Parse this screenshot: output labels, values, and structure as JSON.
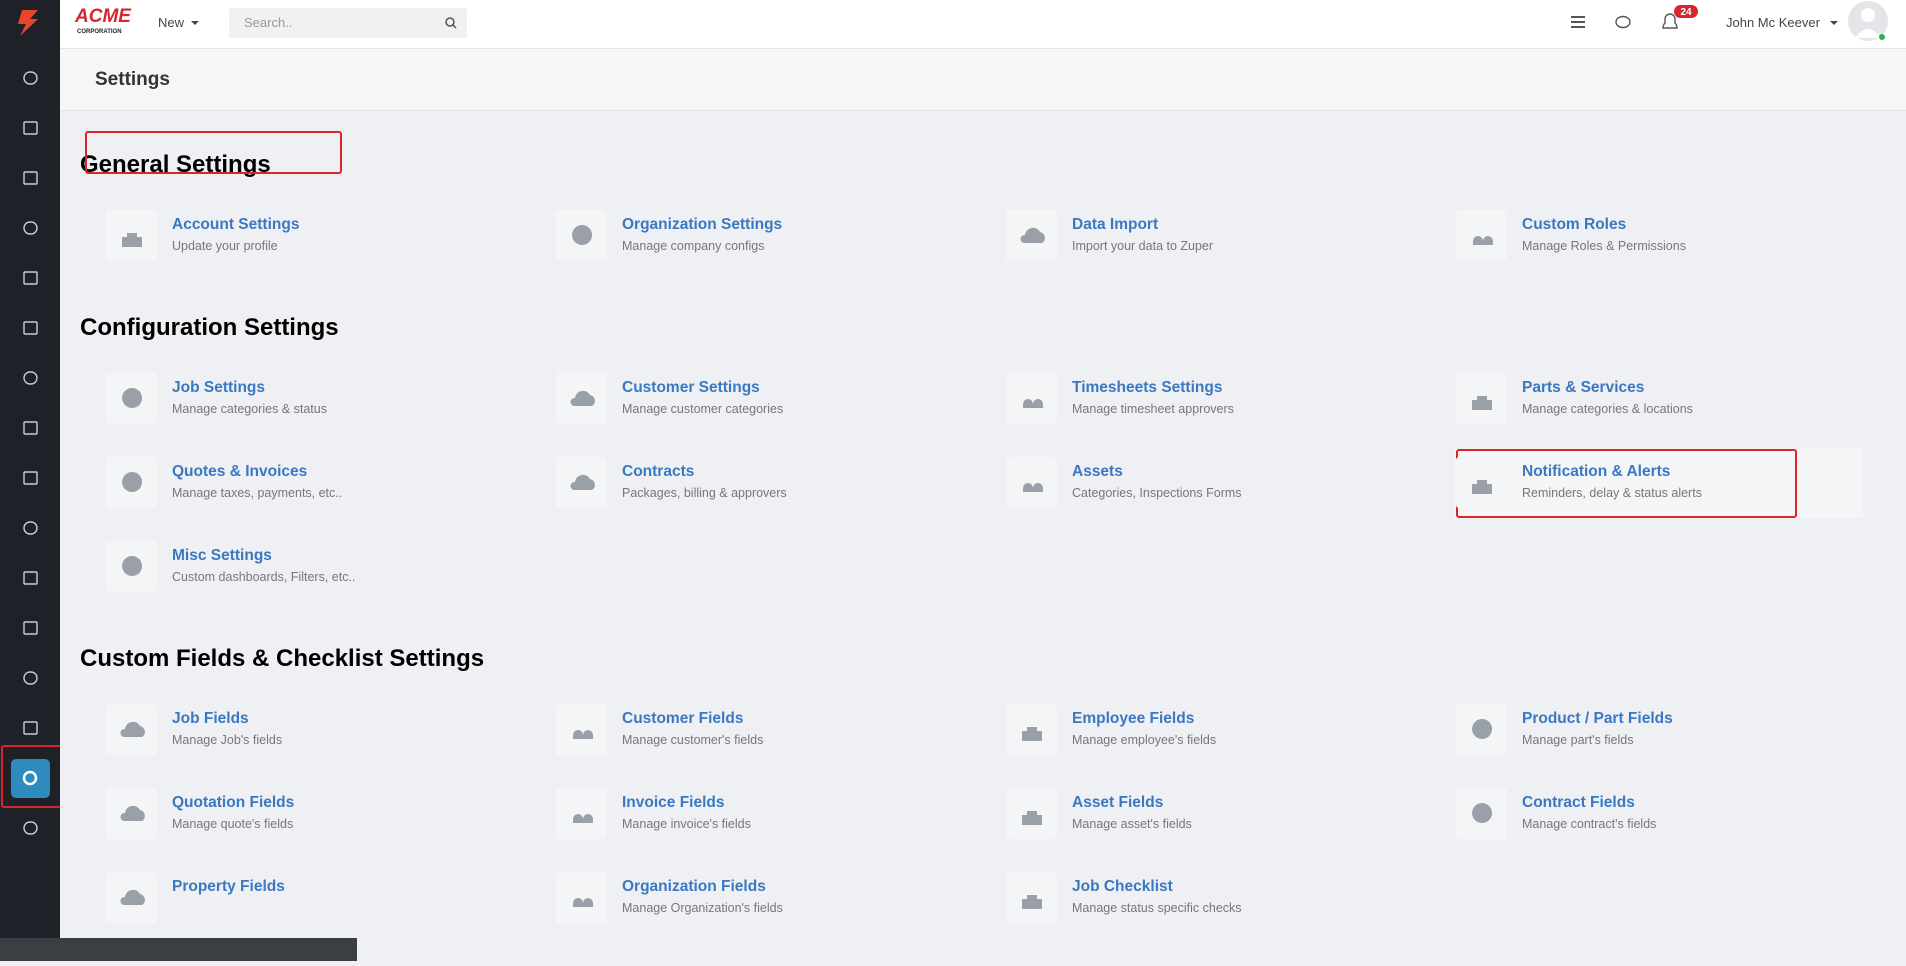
{
  "header": {
    "logo_top": "ACME",
    "logo_bottom": "CORPORATION",
    "new_button": "New",
    "search_placeholder": "Search..",
    "notification_count": 24,
    "user_name": "John Mc Keever"
  },
  "page_title": "Settings",
  "sections": [
    {
      "title": "General Settings",
      "items": [
        {
          "title": "Account Settings",
          "subtitle": "Update your profile"
        },
        {
          "title": "Organization Settings",
          "subtitle": "Manage company configs"
        },
        {
          "title": "Data Import",
          "subtitle": "Import your data to Zuper"
        },
        {
          "title": "Custom Roles",
          "subtitle": "Manage Roles & Permissions"
        }
      ]
    },
    {
      "title": "Configuration Settings",
      "items": [
        {
          "title": "Job Settings",
          "subtitle": "Manage categories & status"
        },
        {
          "title": "Customer Settings",
          "subtitle": "Manage customer categories"
        },
        {
          "title": "Timesheets Settings",
          "subtitle": "Manage timesheet approvers"
        },
        {
          "title": "Parts & Services",
          "subtitle": "Manage categories & locations"
        },
        {
          "title": "Quotes & Invoices",
          "subtitle": "Manage taxes, payments, etc.."
        },
        {
          "title": "Contracts",
          "subtitle": "Packages, billing & approvers"
        },
        {
          "title": "Assets",
          "subtitle": "Categories, Inspections Forms"
        },
        {
          "title": "Notification & Alerts",
          "subtitle": "Reminders, delay & status alerts"
        },
        {
          "title": "Misc Settings",
          "subtitle": "Custom dashboards, Filters, etc.."
        }
      ]
    },
    {
      "title": "Custom Fields & Checklist Settings",
      "items": [
        {
          "title": "Job Fields",
          "subtitle": "Manage Job's fields"
        },
        {
          "title": "Customer Fields",
          "subtitle": "Manage customer's fields"
        },
        {
          "title": "Employee Fields",
          "subtitle": "Manage employee's fields"
        },
        {
          "title": "Product / Part Fields",
          "subtitle": "Manage part's fields"
        },
        {
          "title": "Quotation Fields",
          "subtitle": "Manage quote's fields"
        },
        {
          "title": "Invoice Fields",
          "subtitle": "Manage invoice's fields"
        },
        {
          "title": "Asset Fields",
          "subtitle": "Manage asset's fields"
        },
        {
          "title": "Contract Fields",
          "subtitle": "Manage contract's fields"
        },
        {
          "title": "Property Fields"
        },
        {
          "title": "Organization Fields",
          "subtitle": "Manage Organization's fields"
        },
        {
          "title": "Job Checklist",
          "subtitle": "Manage status specific checks"
        }
      ]
    }
  ]
}
